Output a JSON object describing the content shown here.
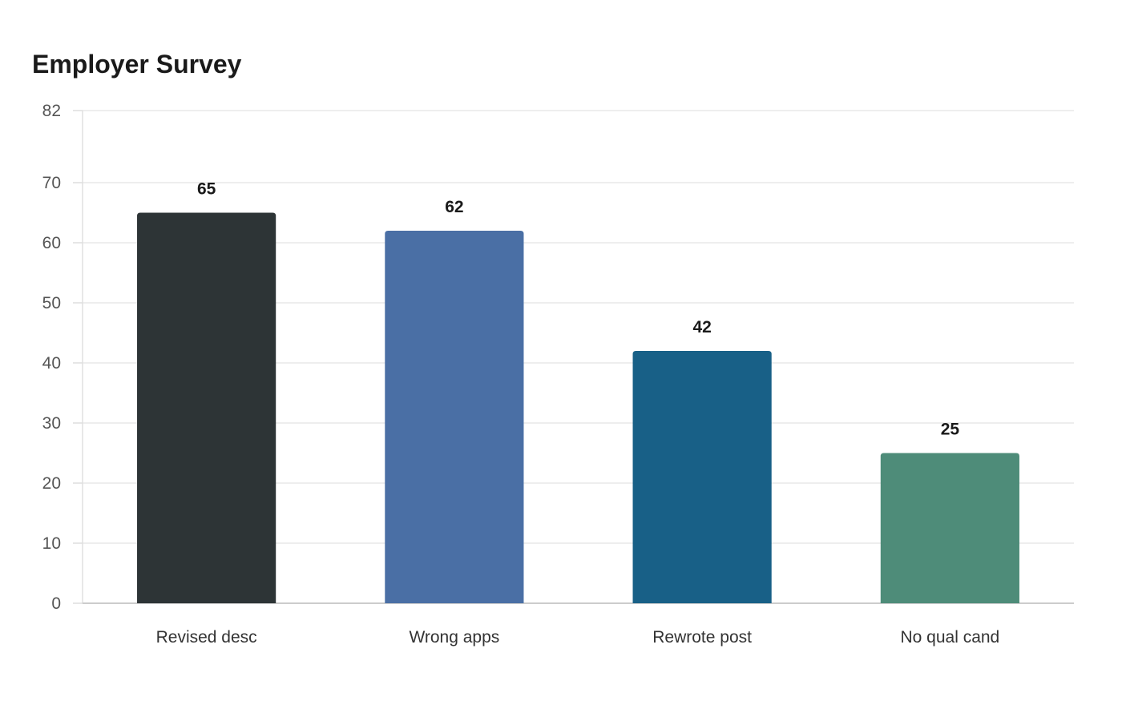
{
  "chart_data": {
    "type": "bar",
    "title": "Employer Survey",
    "categories": [
      "Revised desc",
      "Wrong apps",
      "Rewrote post",
      "No qual cand"
    ],
    "values": [
      65,
      62,
      42,
      25
    ],
    "colors": [
      "#2d3436",
      "#4a6fa5",
      "#186087",
      "#4e8c79"
    ],
    "xlabel": "",
    "ylabel": "",
    "ylim": [
      0,
      82
    ],
    "yticks": [
      0,
      10,
      20,
      30,
      40,
      50,
      60,
      70,
      82
    ],
    "grid": true,
    "legend": "none"
  }
}
